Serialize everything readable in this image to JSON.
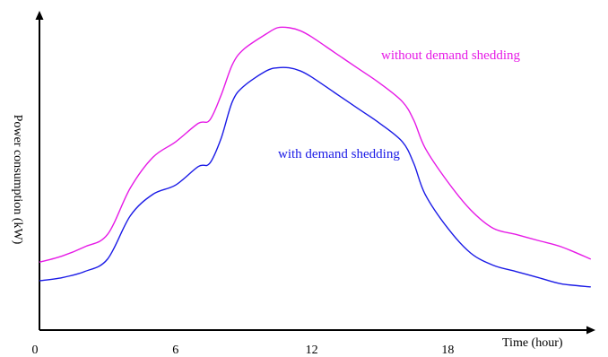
{
  "chart_data": {
    "type": "line",
    "title": "",
    "xlabel": "Time (hour)",
    "ylabel": "Power consumption (kW)",
    "xlim": [
      0,
      24.5
    ],
    "ylim": [
      0,
      100
    ],
    "xticks": [
      0,
      6,
      12,
      18
    ],
    "yticks_labeled": false,
    "grid": false,
    "legend": "inline labels",
    "series": [
      {
        "name": "without demand shedding",
        "color": "#e61ae6",
        "x": [
          0,
          1,
          2,
          3,
          4,
          5,
          6,
          7,
          7.5,
          8,
          8.5,
          9,
          10,
          10.5,
          11,
          11.5,
          12,
          13,
          14,
          15,
          16,
          16.5,
          17,
          18,
          19,
          20,
          21,
          22,
          23,
          24.3
        ],
        "y": [
          22,
          24,
          27,
          31,
          46,
          56,
          61,
          67,
          68,
          76,
          86,
          91,
          96,
          98,
          98,
          97,
          95,
          90,
          85,
          80,
          74,
          68,
          59,
          48,
          39,
          33,
          31,
          29,
          27,
          23
        ]
      },
      {
        "name": "with demand shedding",
        "color": "#1a1ae6",
        "x": [
          0,
          1,
          2,
          3,
          4,
          5,
          6,
          7,
          7.5,
          8,
          8.5,
          9,
          10,
          10.5,
          11,
          11.5,
          12,
          13,
          14,
          15,
          16,
          16.5,
          17,
          18,
          19,
          20,
          21,
          22,
          23,
          24.3
        ],
        "y": [
          16,
          17,
          19,
          23,
          37,
          44,
          47,
          53,
          54,
          62,
          74,
          79,
          84,
          85,
          85,
          84,
          82,
          77,
          72,
          67,
          61,
          54,
          44,
          33,
          25,
          21,
          19,
          17,
          15,
          14
        ]
      }
    ]
  }
}
